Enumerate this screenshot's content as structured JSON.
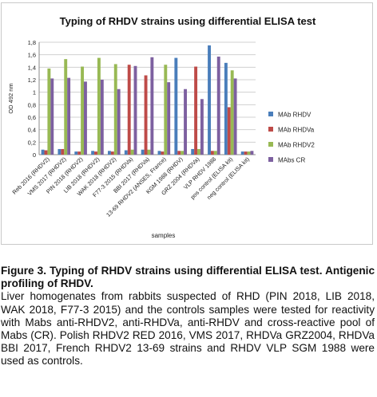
{
  "chart_data": {
    "type": "bar",
    "title": "Typing of RHDV strains using differential ELISA test",
    "xlabel": "samples",
    "ylabel": "OD 492 nm",
    "ylim": [
      0,
      1.8
    ],
    "yticks": [
      "0",
      "0,2",
      "0,4",
      "0,6",
      "0,8",
      "1",
      "1,2",
      "1,4",
      "1,6",
      "1,8"
    ],
    "grid": true,
    "legend_position": "right",
    "categories": [
      "Reb 2016 (RHDV2)",
      "VMS 2017 (RHDV2)",
      "PIN 2018 (RHDV2)",
      "LIB 2018 (RHDV2)",
      "WAK 2018 (RHDV2)",
      "F77-3 2015 (RHDVa)",
      "BBI 2017 (RHDVa)",
      "13-69 RHDV2 (ANSES, France)",
      "KGM 1988 (RHDV)",
      "GRZ 2004 (RHDVa)",
      "VLP RHDV 1988",
      "pos control (ELISA kit)",
      "neg control (ELISA kit)"
    ],
    "series": [
      {
        "name": "MAb RHDV",
        "color": "#4a7ebb",
        "values": [
          0.08,
          0.09,
          0.05,
          0.06,
          0.06,
          0.07,
          0.08,
          0.06,
          1.55,
          0.09,
          1.75,
          1.47,
          0.05
        ]
      },
      {
        "name": "MAb RHDVa",
        "color": "#be4b48",
        "values": [
          0.07,
          0.09,
          0.05,
          0.05,
          0.05,
          1.44,
          1.27,
          0.05,
          0.06,
          1.41,
          0.06,
          0.76,
          0.05
        ]
      },
      {
        "name": "MAb RHDV2",
        "color": "#98b954",
        "values": [
          1.38,
          1.53,
          1.41,
          1.55,
          1.45,
          0.08,
          0.08,
          1.44,
          0.06,
          0.09,
          0.06,
          1.35,
          0.05
        ]
      },
      {
        "name": "MAbs CR",
        "color": "#7d60a0",
        "values": [
          1.22,
          1.23,
          1.17,
          1.2,
          1.05,
          1.42,
          1.56,
          1.16,
          1.05,
          0.89,
          1.57,
          1.22,
          0.06
        ]
      }
    ]
  },
  "caption": {
    "title": "Figure 3. Typing of RHDV strains using differential ELISA test. Antigenic profiling of RHDV.",
    "body": "Liver homogenates from rabbits suspected of RHD (PIN 2018, LIB 2018, WAK 2018, F77-3 2015) and the controls samples were tested for reactivity with Mabs anti-RHDV2, anti-RHDVa, anti-RHDV and cross-reactive pool of Mabs (CR). Polish RHDV2 RED 2016, VMS 2017, RHDVa GRZ2004, RHDVa BBI 2017, French RHDV2 13-69 strains and RHDV VLP SGM 1988 were used as controls."
  }
}
